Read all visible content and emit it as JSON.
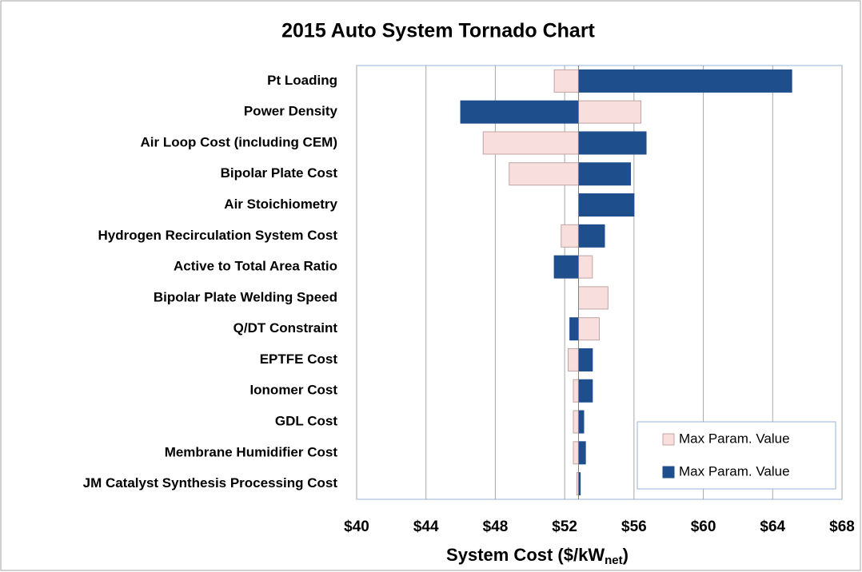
{
  "chart_data": {
    "type": "tornado",
    "title": "2015 Auto System Tornado Chart",
    "x_label": {
      "text": "System Cost ($/kW",
      "subscript": "net",
      "suffix": ")"
    },
    "categories": [
      "Pt Loading",
      "Power Density",
      "Air Loop Cost (including CEM)",
      "Bipolar Plate Cost",
      "Air Stoichiometry",
      "Hydrogen Recirculation System Cost",
      "Active to Total Area Ratio",
      "Bipolar Plate Welding Speed",
      "Q/DT Constraint",
      "EPTFE Cost",
      "Ionomer Cost",
      "GDL Cost",
      "Membrane Humidifier Cost",
      "JM Catalyst Synthesis Processing Cost"
    ],
    "base_value": 52.8,
    "series": [
      {
        "name": "Max Param. Value",
        "color": "#f9dede",
        "values": [
          51.4,
          56.4,
          47.3,
          48.8,
          52.8,
          51.8,
          53.6,
          54.5,
          54.0,
          52.2,
          52.5,
          52.5,
          52.5,
          52.7
        ]
      },
      {
        "name": "Max Param. Value",
        "color": "#1f4e8c",
        "values": [
          65.1,
          46.0,
          56.7,
          55.8,
          56.0,
          54.3,
          51.4,
          52.8,
          52.3,
          53.6,
          53.6,
          53.1,
          53.2,
          52.9
        ]
      }
    ],
    "xlim": [
      40,
      68
    ],
    "xticks": [
      {
        "value": 40,
        "label": "$40"
      },
      {
        "value": 44,
        "label": "$44"
      },
      {
        "value": 48,
        "label": "$48"
      },
      {
        "value": 52,
        "label": "$52"
      },
      {
        "value": 56,
        "label": "$56"
      },
      {
        "value": 60,
        "label": "$60"
      },
      {
        "value": 64,
        "label": "$64"
      },
      {
        "value": 68,
        "label": "$68"
      }
    ],
    "grid": true,
    "legend": "lower-right"
  }
}
